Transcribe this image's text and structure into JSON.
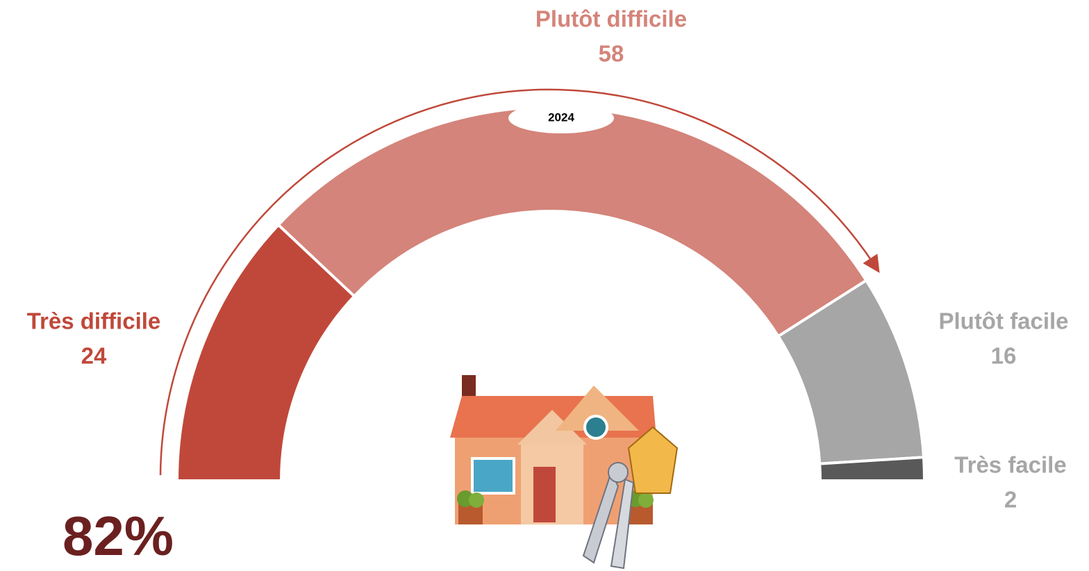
{
  "chart_data": {
    "type": "pie",
    "half": true,
    "categories": [
      "Très difficile",
      "Plutôt difficile",
      "Plutôt facile",
      "Très facile"
    ],
    "values": [
      24,
      58,
      16,
      2
    ],
    "colors": [
      "#c0483a",
      "#d4847a",
      "#a6a6a6",
      "#595959"
    ],
    "label_colors": [
      "#c0483a",
      "#d4847a",
      "#a6a6a6",
      "#a6a6a6"
    ],
    "annotations": [
      "2024",
      "82%"
    ]
  }
}
